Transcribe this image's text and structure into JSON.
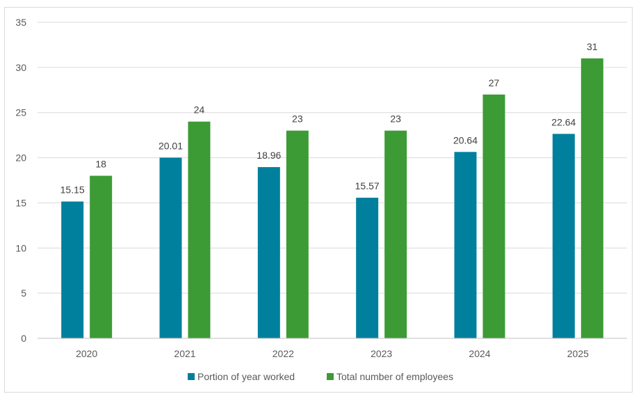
{
  "chart_data": {
    "type": "bar",
    "categories": [
      "2020",
      "2021",
      "2022",
      "2023",
      "2024",
      "2025"
    ],
    "series": [
      {
        "name": "Portion of year worked",
        "color": "#00809D",
        "values": [
          15.15,
          20.01,
          18.96,
          15.57,
          20.64,
          22.64
        ],
        "labels": [
          "15.15",
          "20.01",
          "18.96",
          "15.57",
          "20.64",
          "22.64"
        ]
      },
      {
        "name": "Total number of employees",
        "color": "#3C9B35",
        "values": [
          18,
          24,
          23,
          23,
          27,
          31
        ],
        "labels": [
          "18",
          "24",
          "23",
          "23",
          "27",
          "31"
        ]
      }
    ],
    "ylim": [
      0,
      35
    ],
    "yticks": [
      0,
      5,
      10,
      15,
      20,
      25,
      30,
      35
    ],
    "ytick_labels": [
      "0",
      "5",
      "10",
      "15",
      "20",
      "25",
      "30",
      "35"
    ],
    "grid": true,
    "gridline_color": "#d9d9d9",
    "legend_position": "bottom",
    "title": "",
    "xlabel": "",
    "ylabel": ""
  }
}
